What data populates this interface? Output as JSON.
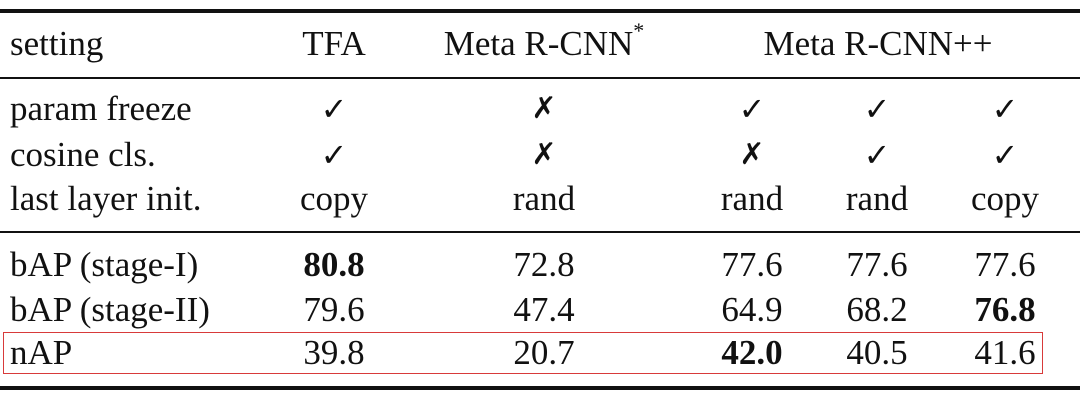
{
  "table": {
    "header": {
      "setting": "setting",
      "tfa": "TFA",
      "meta_rcnn": "Meta R-CNN",
      "meta_rcnn_sup": "*",
      "meta_rcnn_pp": "Meta R-CNN++"
    },
    "config_rows": [
      {
        "label": "param freeze",
        "cells": [
          "✓",
          "✗",
          "✓",
          "✓",
          "✓"
        ]
      },
      {
        "label": "cosine cls.",
        "cells": [
          "✓",
          "✗",
          "✗",
          "✓",
          "✓"
        ]
      },
      {
        "label": "last layer init.",
        "cells": [
          "copy",
          "rand",
          "rand",
          "rand",
          "copy"
        ]
      }
    ],
    "result_rows": [
      {
        "label": "bAP (stage-I)",
        "cells": [
          "80.8",
          "72.8",
          "77.6",
          "77.6",
          "77.6"
        ]
      },
      {
        "label": "bAP (stage-II)",
        "cells": [
          "79.6",
          "47.4",
          "64.9",
          "68.2",
          "76.8"
        ]
      },
      {
        "label": "nAP",
        "cells": [
          "39.8",
          "20.7",
          "42.0",
          "40.5",
          "41.6"
        ]
      }
    ],
    "highlight_color": "#d83a3a"
  }
}
